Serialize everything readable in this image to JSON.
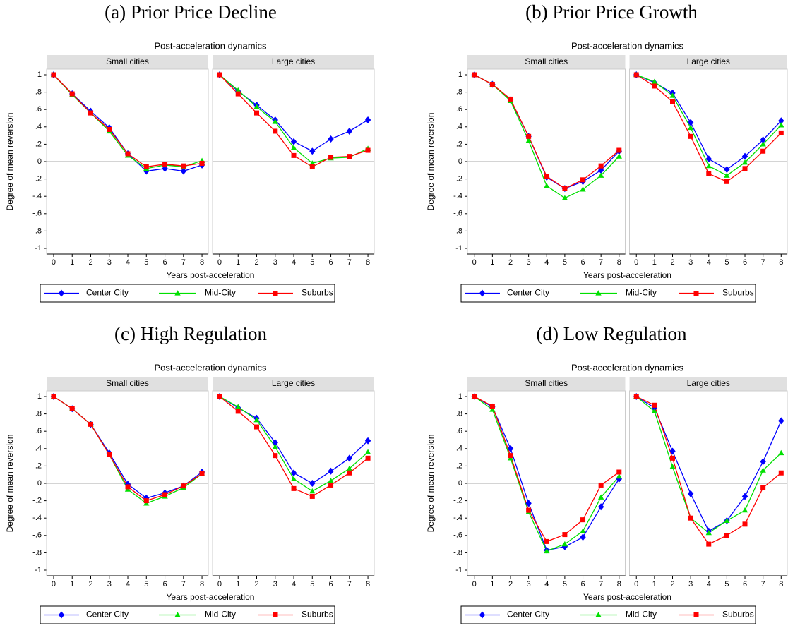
{
  "chart_data": [
    {
      "type": "line",
      "caption": "(a) Prior Price Decline",
      "title": "Post-acceleration dynamics",
      "xlabel": "Years post-acceleration",
      "ylabel": "Degree of mean reversion",
      "x": [
        0,
        1,
        2,
        3,
        4,
        5,
        6,
        7,
        8
      ],
      "xlim": [
        -0.38,
        8.34
      ],
      "xticks": [
        0,
        1,
        2,
        3,
        4,
        5,
        6,
        7,
        8
      ],
      "ylim": [
        -1.065,
        1.065
      ],
      "yticks": [
        {
          "value": -1,
          "label": "-1"
        },
        {
          "value": -0.8,
          "label": "-.8"
        },
        {
          "value": -0.6,
          "label": "-.6"
        },
        {
          "value": -0.4,
          "label": "-.4"
        },
        {
          "value": -0.2,
          "label": "-.2"
        },
        0,
        {
          "value": 0.2,
          "label": ".2"
        },
        {
          "value": 0.4,
          "label": ".4"
        },
        {
          "value": 0.6,
          "label": ".6"
        },
        {
          "value": 0.8,
          "label": ".8"
        },
        1
      ],
      "hline": 0,
      "legend": "bottom",
      "series": [
        {
          "name": "Center City",
          "color": "#0000ff",
          "marker": "diamond"
        },
        {
          "name": "Mid-City",
          "color": "#00e000",
          "marker": "triangle"
        },
        {
          "name": "Suburbs",
          "color": "#ff0000",
          "marker": "square"
        }
      ],
      "panels": [
        {
          "title": "Small cities",
          "series": [
            {
              "values": [
                1,
                0.78,
                0.58,
                0.39,
                0.09,
                -0.11,
                -0.08,
                -0.11,
                -0.04
              ]
            },
            {
              "values": [
                1,
                0.77,
                0.56,
                0.35,
                0.07,
                -0.08,
                -0.04,
                -0.06,
                0.01
              ]
            },
            {
              "values": [
                1,
                0.78,
                0.56,
                0.37,
                0.09,
                -0.06,
                -0.03,
                -0.05,
                -0.02
              ]
            }
          ]
        },
        {
          "title": "Large cities",
          "series": [
            {
              "values": [
                1,
                0.81,
                0.65,
                0.48,
                0.23,
                0.12,
                0.26,
                0.35,
                0.48
              ]
            },
            {
              "values": [
                1,
                0.82,
                0.63,
                0.46,
                0.16,
                -0.02,
                0.04,
                0.05,
                0.15
              ]
            },
            {
              "values": [
                1,
                0.78,
                0.56,
                0.35,
                0.07,
                -0.06,
                0.05,
                0.06,
                0.13
              ]
            }
          ]
        }
      ]
    },
    {
      "type": "line",
      "caption": "(b) Prior Price Growth",
      "title": "Post-acceleration dynamics",
      "xlabel": "Years post-acceleration",
      "ylabel": "Degree of mean reversion",
      "x": [
        0,
        1,
        2,
        3,
        4,
        5,
        6,
        7,
        8
      ],
      "xlim": [
        -0.38,
        8.34
      ],
      "xticks": [
        0,
        1,
        2,
        3,
        4,
        5,
        6,
        7,
        8
      ],
      "ylim": [
        -1.065,
        1.065
      ],
      "yticks": [
        {
          "value": -1,
          "label": "-1"
        },
        {
          "value": -0.8,
          "label": "-.8"
        },
        {
          "value": -0.6,
          "label": "-.6"
        },
        {
          "value": -0.4,
          "label": "-.4"
        },
        {
          "value": -0.2,
          "label": "-.2"
        },
        0,
        {
          "value": 0.2,
          "label": ".2"
        },
        {
          "value": 0.4,
          "label": ".4"
        },
        {
          "value": 0.6,
          "label": ".6"
        },
        {
          "value": 0.8,
          "label": ".8"
        },
        1
      ],
      "hline": 0,
      "legend": "bottom",
      "series": [
        {
          "name": "Center City",
          "color": "#0000ff",
          "marker": "diamond"
        },
        {
          "name": "Mid-City",
          "color": "#00e000",
          "marker": "triangle"
        },
        {
          "name": "Suburbs",
          "color": "#ff0000",
          "marker": "square"
        }
      ],
      "panels": [
        {
          "title": "Small cities",
          "series": [
            {
              "values": [
                1,
                0.89,
                0.71,
                0.29,
                -0.18,
                -0.31,
                -0.23,
                -0.1,
                0.12
              ]
            },
            {
              "values": [
                1,
                0.89,
                0.7,
                0.24,
                -0.28,
                -0.42,
                -0.32,
                -0.16,
                0.06
              ]
            },
            {
              "values": [
                1,
                0.89,
                0.72,
                0.29,
                -0.17,
                -0.31,
                -0.21,
                -0.05,
                0.13
              ]
            }
          ]
        },
        {
          "title": "Large cities",
          "series": [
            {
              "values": [
                1,
                0.91,
                0.79,
                0.45,
                0.03,
                -0.09,
                0.06,
                0.25,
                0.47
              ]
            },
            {
              "values": [
                1,
                0.92,
                0.76,
                0.39,
                -0.05,
                -0.16,
                -0.01,
                0.2,
                0.42
              ]
            },
            {
              "values": [
                1,
                0.87,
                0.69,
                0.29,
                -0.14,
                -0.23,
                -0.08,
                0.12,
                0.33
              ]
            }
          ]
        }
      ]
    },
    {
      "type": "line",
      "caption": "(c) High Regulation",
      "title": "Post-acceleration dynamics",
      "xlabel": "Years post-acceleration",
      "ylabel": "Degree of mean reversion",
      "x": [
        0,
        1,
        2,
        3,
        4,
        5,
        6,
        7,
        8
      ],
      "xlim": [
        -0.38,
        8.34
      ],
      "xticks": [
        0,
        1,
        2,
        3,
        4,
        5,
        6,
        7,
        8
      ],
      "ylim": [
        -1.065,
        1.065
      ],
      "yticks": [
        {
          "value": -1,
          "label": "-1"
        },
        {
          "value": -0.8,
          "label": "-.8"
        },
        {
          "value": -0.6,
          "label": "-.6"
        },
        {
          "value": -0.4,
          "label": "-.4"
        },
        {
          "value": -0.2,
          "label": "-.2"
        },
        0,
        {
          "value": 0.2,
          "label": ".2"
        },
        {
          "value": 0.4,
          "label": ".4"
        },
        {
          "value": 0.6,
          "label": ".6"
        },
        {
          "value": 0.8,
          "label": ".8"
        },
        1
      ],
      "hline": 0,
      "legend": "bottom",
      "series": [
        {
          "name": "Center City",
          "color": "#0000ff",
          "marker": "diamond"
        },
        {
          "name": "Mid-City",
          "color": "#00e000",
          "marker": "triangle"
        },
        {
          "name": "Suburbs",
          "color": "#ff0000",
          "marker": "square"
        }
      ],
      "panels": [
        {
          "title": "Small cities",
          "series": [
            {
              "values": [
                1,
                0.86,
                0.68,
                0.35,
                -0.01,
                -0.17,
                -0.11,
                -0.03,
                0.13
              ]
            },
            {
              "values": [
                1,
                0.86,
                0.68,
                0.33,
                -0.07,
                -0.23,
                -0.15,
                -0.05,
                0.11
              ]
            },
            {
              "values": [
                1,
                0.86,
                0.68,
                0.33,
                -0.04,
                -0.2,
                -0.13,
                -0.03,
                0.11
              ]
            }
          ]
        },
        {
          "title": "Large cities",
          "series": [
            {
              "values": [
                1,
                0.87,
                0.75,
                0.47,
                0.12,
                0,
                0.14,
                0.29,
                0.49
              ]
            },
            {
              "values": [
                1,
                0.88,
                0.73,
                0.42,
                0.05,
                -0.09,
                0.03,
                0.17,
                0.36
              ]
            },
            {
              "values": [
                1,
                0.83,
                0.65,
                0.32,
                -0.06,
                -0.15,
                -0.02,
                0.12,
                0.29
              ]
            }
          ]
        }
      ]
    },
    {
      "type": "line",
      "caption": "(d) Low Regulation",
      "title": "Post-acceleration dynamics",
      "xlabel": "Years post-acceleration",
      "ylabel": "Degree of mean reversion",
      "x": [
        0,
        1,
        2,
        3,
        4,
        5,
        6,
        7,
        8
      ],
      "xlim": [
        -0.38,
        8.34
      ],
      "xticks": [
        0,
        1,
        2,
        3,
        4,
        5,
        6,
        7,
        8
      ],
      "ylim": [
        -1.065,
        1.065
      ],
      "yticks": [
        {
          "value": -1,
          "label": "-1"
        },
        {
          "value": -0.8,
          "label": "-.8"
        },
        {
          "value": -0.6,
          "label": "-.6"
        },
        {
          "value": -0.4,
          "label": "-.4"
        },
        {
          "value": -0.2,
          "label": "-.2"
        },
        0,
        {
          "value": 0.2,
          "label": ".2"
        },
        {
          "value": 0.4,
          "label": ".4"
        },
        {
          "value": 0.6,
          "label": ".6"
        },
        {
          "value": 0.8,
          "label": ".8"
        },
        1
      ],
      "hline": 0,
      "legend": "bottom",
      "series": [
        {
          "name": "Center City",
          "color": "#0000ff",
          "marker": "diamond"
        },
        {
          "name": "Mid-City",
          "color": "#00e000",
          "marker": "triangle"
        },
        {
          "name": "Suburbs",
          "color": "#ff0000",
          "marker": "square"
        }
      ],
      "panels": [
        {
          "title": "Small cities",
          "series": [
            {
              "values": [
                1,
                0.88,
                0.4,
                -0.23,
                -0.77,
                -0.73,
                -0.62,
                -0.27,
                0.05
              ]
            },
            {
              "values": [
                1,
                0.85,
                0.29,
                -0.33,
                -0.78,
                -0.7,
                -0.55,
                -0.16,
                0.08
              ]
            },
            {
              "values": [
                1,
                0.89,
                0.32,
                -0.31,
                -0.67,
                -0.59,
                -0.42,
                -0.02,
                0.13
              ]
            }
          ]
        },
        {
          "title": "Large cities",
          "series": [
            {
              "values": [
                1,
                0.87,
                0.37,
                -0.12,
                -0.55,
                -0.43,
                -0.15,
                0.25,
                0.72
              ]
            },
            {
              "values": [
                1,
                0.83,
                0.19,
                -0.4,
                -0.57,
                -0.43,
                -0.31,
                0.15,
                0.35
              ]
            },
            {
              "values": [
                1,
                0.9,
                0.29,
                -0.4,
                -0.7,
                -0.6,
                -0.47,
                -0.05,
                0.12
              ]
            }
          ]
        }
      ]
    }
  ]
}
